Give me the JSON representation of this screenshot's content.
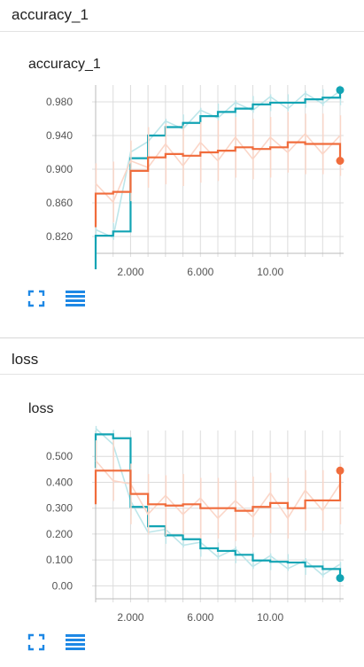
{
  "sections": [
    {
      "title": "accuracy_1",
      "card_title": "accuracy_1"
    },
    {
      "title": "loss",
      "card_title": "loss"
    }
  ],
  "icons": {
    "fit": "fit-domain-icon",
    "data": "data-table-icon"
  },
  "colors": {
    "series_a": "#12a4b4",
    "series_b": "#f06c3c",
    "accent": "#1e88e5"
  },
  "chart_data": [
    {
      "type": "line",
      "title": "accuracy_1",
      "xlim": [
        0,
        14
      ],
      "ylim": [
        0.8,
        1.0
      ],
      "x_ticks": [
        "2.000",
        "6.000",
        "10.00"
      ],
      "x_tick_values": [
        2,
        6,
        10
      ],
      "y_ticks": [
        "0.820",
        "0.860",
        "0.900",
        "0.940",
        "0.980"
      ],
      "y_tick_values": [
        0.82,
        0.86,
        0.9,
        0.94,
        0.98
      ],
      "series": [
        {
          "color": "#12a4b4",
          "x": [
            0,
            1,
            2,
            3,
            4,
            5,
            6,
            7,
            8,
            9,
            10,
            11,
            12,
            13,
            14
          ],
          "values": [
            0.821,
            0.826,
            0.913,
            0.94,
            0.95,
            0.955,
            0.963,
            0.968,
            0.972,
            0.977,
            0.979,
            0.979,
            0.983,
            0.985,
            0.986
          ],
          "end": 0.994
        },
        {
          "color": "#f06c3c",
          "x": [
            0,
            1,
            2,
            3,
            4,
            5,
            6,
            7,
            8,
            9,
            10,
            11,
            12,
            13,
            14
          ],
          "values": [
            0.871,
            0.873,
            0.898,
            0.914,
            0.918,
            0.916,
            0.92,
            0.922,
            0.926,
            0.924,
            0.926,
            0.932,
            0.93,
            0.93,
            0.928
          ],
          "end": 0.91
        }
      ]
    },
    {
      "type": "line",
      "title": "loss",
      "xlim": [
        0,
        14
      ],
      "ylim": [
        -0.05,
        0.6
      ],
      "x_ticks": [
        "2.000",
        "6.000",
        "10.00"
      ],
      "x_tick_values": [
        2,
        6,
        10
      ],
      "y_ticks": [
        "0.00",
        "0.100",
        "0.200",
        "0.300",
        "0.400",
        "0.500"
      ],
      "y_tick_values": [
        0.0,
        0.1,
        0.2,
        0.3,
        0.4,
        0.5
      ],
      "series": [
        {
          "color": "#12a4b4",
          "x": [
            0,
            1,
            2,
            3,
            4,
            5,
            6,
            7,
            8,
            9,
            10,
            11,
            12,
            13,
            14
          ],
          "values": [
            0.585,
            0.57,
            0.305,
            0.23,
            0.195,
            0.18,
            0.145,
            0.135,
            0.12,
            0.098,
            0.093,
            0.09,
            0.075,
            0.065,
            0.06
          ],
          "end": 0.03
        },
        {
          "color": "#f06c3c",
          "x": [
            0,
            1,
            2,
            3,
            4,
            5,
            6,
            7,
            8,
            9,
            10,
            11,
            12,
            13,
            14
          ],
          "values": [
            0.445,
            0.445,
            0.355,
            0.315,
            0.31,
            0.315,
            0.3,
            0.3,
            0.29,
            0.305,
            0.32,
            0.3,
            0.33,
            0.33,
            0.355
          ],
          "end": 0.445
        }
      ]
    }
  ]
}
